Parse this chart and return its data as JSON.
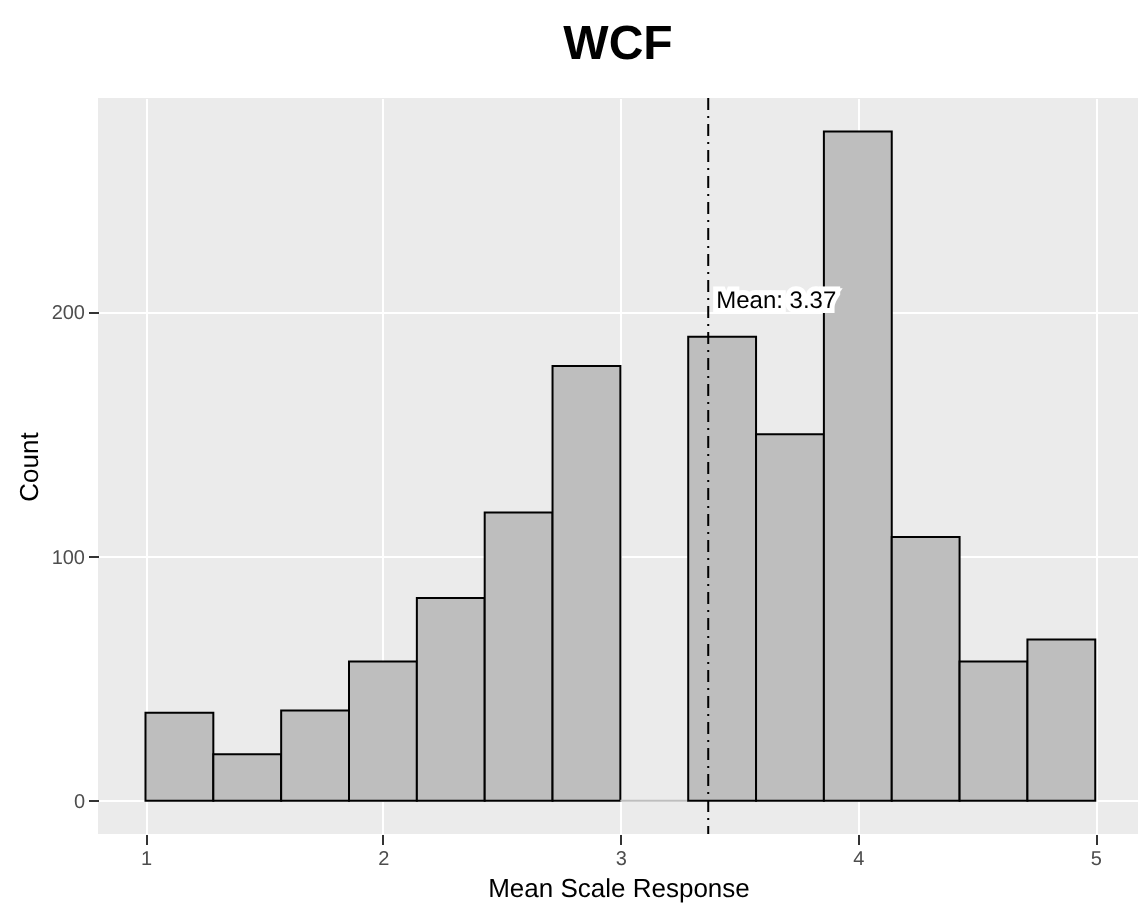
{
  "chart_data": {
    "type": "histogram",
    "title": "WCF",
    "xlabel": "Mean Scale Response",
    "ylabel": "Count",
    "bins": [
      1,
      1.2857,
      1.5714,
      1.8571,
      2.1429,
      2.4286,
      2.7143,
      3,
      3.2857,
      3.5714,
      3.8571,
      4.1429,
      4.4286,
      4.7143,
      5
    ],
    "values": [
      36,
      19,
      37,
      57,
      83,
      118,
      178,
      0,
      190,
      150,
      274,
      108,
      57,
      66
    ],
    "color": "#bebebe",
    "xlim": [
      0.8,
      5.18
    ],
    "ylim": [
      -13.6,
      287.7
    ],
    "xticks": [
      1,
      2,
      3,
      4,
      5
    ],
    "yticks": [
      0,
      100,
      200
    ],
    "grid": true,
    "ref_lines": [
      {
        "axis": "x",
        "value": 3.37,
        "line_style": "dashed",
        "color": "#000000"
      }
    ],
    "annotations": [
      {
        "text": "Mean: 3.37",
        "x": 3.37,
        "y": 205
      }
    ]
  }
}
